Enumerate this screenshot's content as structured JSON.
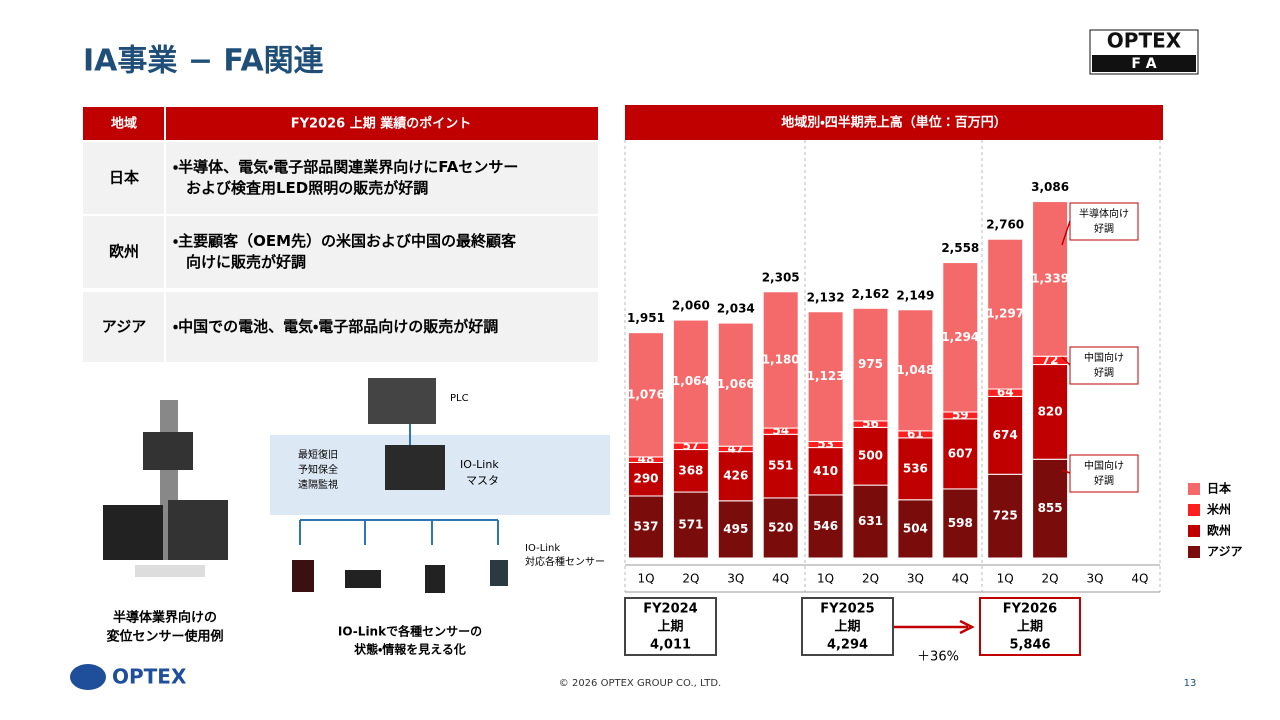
{
  "header": {
    "title": "IA事業 − FA関連",
    "logo_top": "OPTEX",
    "logo_bottom": "F A"
  },
  "table": {
    "headers": [
      "地域",
      "FY2026 上期 業績のポイント"
    ],
    "rows": [
      {
        "region": "日本",
        "points": [
          "・半導体、電気・電子部品関連業界向けにFAセンサー",
          "および検査用LED照明の販売が好調"
        ]
      },
      {
        "region": "欧州",
        "points": [
          "・主要顧客（OEM先）の米国および中国の最終顧客",
          "向けに販売が好調"
        ]
      },
      {
        "region": "アジア",
        "points": [
          "・中国での電池、電気・電子部品向けの販売が好調"
        ]
      }
    ]
  },
  "illustrations": {
    "sensor_caption": [
      "半導体業界向けの",
      "変位センサー使用例"
    ],
    "plc": "PLC",
    "master": [
      "IO-Link",
      "マスタ"
    ],
    "sensors": [
      "IO-Link",
      "対応各種センサー"
    ],
    "benefits": [
      "最短復旧",
      "予知保全",
      "遠隔監視"
    ],
    "iolink_caption": [
      "IO-Linkで各種センサーの",
      "状態・情報を見える化"
    ]
  },
  "chart_data": {
    "type": "bar",
    "stacked": true,
    "title": "地域別・四半期売上高（単位：百万円）",
    "categories": [
      "1Q",
      "2Q",
      "3Q",
      "4Q",
      "1Q",
      "2Q",
      "3Q",
      "4Q",
      "1Q",
      "2Q",
      "3Q",
      "4Q"
    ],
    "series": [
      {
        "name": "アジア",
        "color": "#7b0c0c",
        "values": [
          537,
          571,
          495,
          520,
          546,
          631,
          504,
          598,
          725,
          855,
          null,
          null
        ]
      },
      {
        "name": "欧州",
        "color": "#c00000",
        "values": [
          290,
          368,
          426,
          551,
          410,
          500,
          536,
          607,
          674,
          820,
          null,
          null
        ]
      },
      {
        "name": "米州",
        "color": "#ff1f1f",
        "values": [
          48,
          57,
          47,
          54,
          53,
          56,
          61,
          59,
          64,
          72,
          null,
          null
        ]
      },
      {
        "name": "日本",
        "color": "#f46a6a",
        "values": [
          1076,
          1064,
          1066,
          1180,
          1123,
          975,
          1048,
          1294,
          1297,
          1339,
          null,
          null
        ],
        "value_labels": [
          "1,076",
          "1,064",
          "1,066",
          "1,180",
          "1,123",
          "975",
          "1,048",
          "1,294",
          "1,297",
          "1,339",
          null,
          null
        ]
      }
    ],
    "totals": [
      1951,
      2060,
      2034,
      2305,
      2132,
      2162,
      2149,
      2558,
      2760,
      3086,
      null,
      null
    ],
    "total_labels": [
      "1,951",
      "2,060",
      "2,034",
      "2,305",
      "2,132",
      "2,162",
      "2,149",
      "2,558",
      "2,760",
      "3,086",
      null,
      null
    ],
    "periods": [
      {
        "label": [
          "FY2024",
          "上期"
        ],
        "total": 4011,
        "total_label": "4,011"
      },
      {
        "label": [
          "FY2025",
          "上期"
        ],
        "total": 4294,
        "total_label": "4,294"
      },
      {
        "label": [
          "FY2026",
          "上期"
        ],
        "total": 5846,
        "total_label": "5,846"
      }
    ],
    "growth": "＋36%",
    "annotations": [
      [
        "半導体向け",
        "好調"
      ],
      [
        "中国向け",
        "好調"
      ],
      [
        "中国向け",
        "好調"
      ]
    ]
  },
  "footer": {
    "copyright": "© 2026 OPTEX GROUP CO., LTD.",
    "page": "13",
    "logo": "OPTEX"
  }
}
